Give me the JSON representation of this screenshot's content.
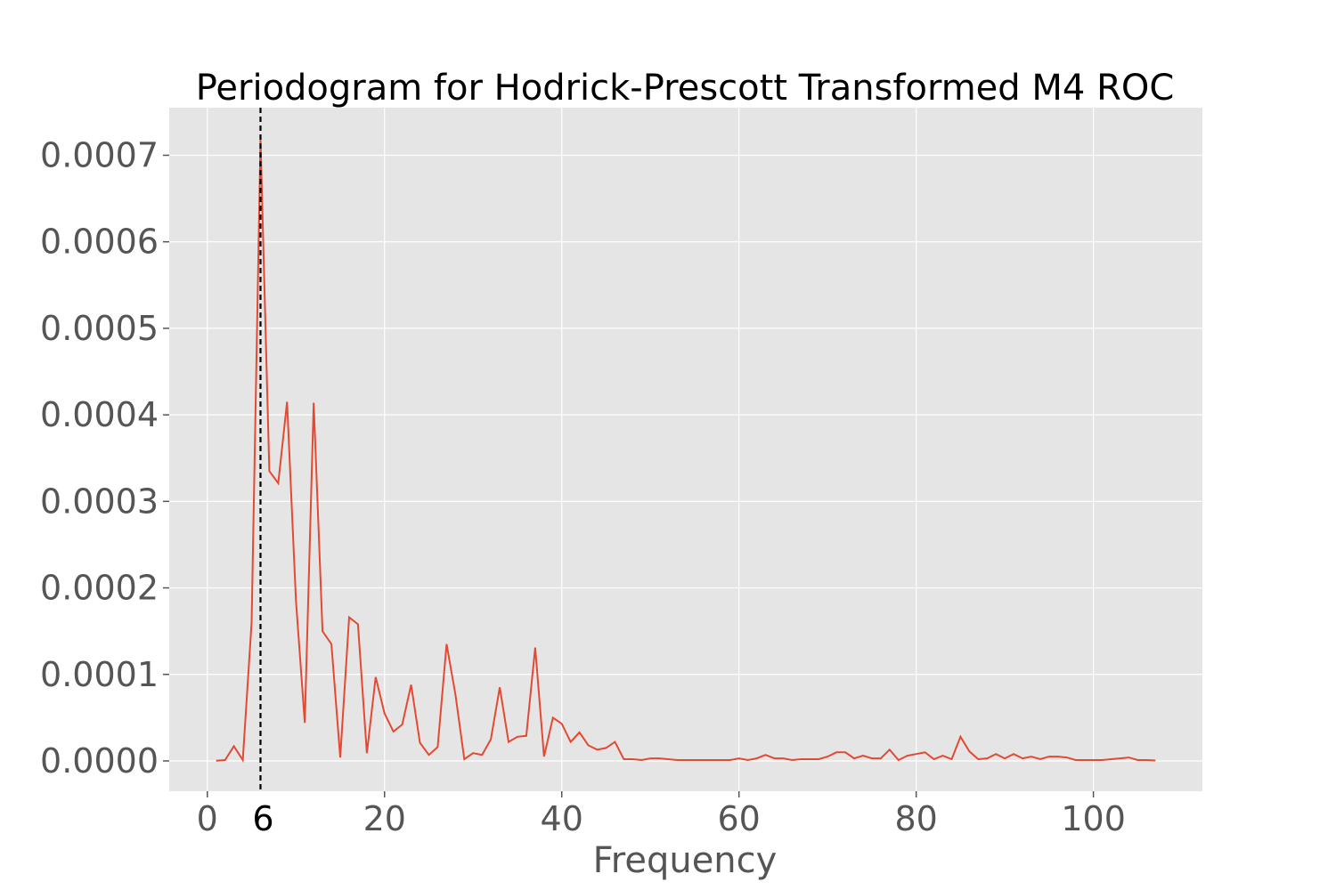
{
  "chart_data": {
    "type": "line",
    "title": "Periodogram for Hodrick-Prescott Transformed M4 ROC",
    "xlabel": "Frequency",
    "ylabel": "",
    "xlim": [
      -4.3,
      112.3
    ],
    "ylim": [
      -3.5e-05,
      0.000755
    ],
    "grid": true,
    "background": "#e5e5e5",
    "line_color": "#e24a33",
    "marker_line_color": "#000000",
    "x_ticks": [
      0,
      20,
      40,
      60,
      80,
      100
    ],
    "x_tick_labels": [
      "0",
      "20",
      "40",
      "60",
      "80",
      "100"
    ],
    "y_ticks": [
      0.0,
      0.0001,
      0.0002,
      0.0003,
      0.0004,
      0.0005,
      0.0006,
      0.0007
    ],
    "y_tick_labels": [
      "0.0000",
      "0.0001",
      "0.0002",
      "0.0003",
      "0.0004",
      "0.0005",
      "0.0006",
      "0.0007"
    ],
    "peak_marker": {
      "x": 6,
      "label": "6",
      "style": "dashed"
    },
    "series": [
      {
        "x": [
          1,
          2,
          3,
          4,
          5,
          6,
          7,
          8,
          9,
          10,
          11,
          12,
          13,
          14,
          15,
          16,
          17,
          18,
          19,
          20,
          21,
          22,
          23,
          24,
          25,
          26,
          27,
          28,
          29,
          30,
          31,
          32,
          33,
          34,
          35,
          36,
          37,
          38,
          39,
          40,
          41,
          42,
          43,
          44,
          45,
          46,
          47,
          48,
          49,
          50,
          51,
          52,
          53,
          54,
          55,
          56,
          57,
          58,
          59,
          60,
          61,
          62,
          63,
          64,
          65,
          66,
          67,
          68,
          69,
          70,
          71,
          72,
          73,
          74,
          75,
          76,
          77,
          78,
          79,
          80,
          81,
          82,
          83,
          84,
          85,
          86,
          87,
          88,
          89,
          90,
          91,
          92,
          93,
          94,
          95,
          96,
          97,
          98,
          99,
          100,
          101,
          102,
          103,
          104,
          105,
          106,
          107
        ],
        "values": [
          2e-07,
          1e-06,
          1.7e-05,
          1e-06,
          0.00016,
          0.000718,
          0.000335,
          0.000321,
          0.000415,
          0.000185,
          4.4e-05,
          0.000414,
          0.00015,
          0.000135,
          4e-06,
          0.000166,
          0.000158,
          9e-06,
          9.7e-05,
          5.5e-05,
          3.4e-05,
          4.2e-05,
          8.8e-05,
          2.1e-05,
          7e-06,
          1.6e-05,
          0.000135,
          7.7e-05,
          2e-06,
          9e-06,
          7e-06,
          2.5e-05,
          8.5e-05,
          2.2e-05,
          2.8e-05,
          2.9e-05,
          0.000131,
          5e-06,
          5e-05,
          4.3e-05,
          2.2e-05,
          3.3e-05,
          1.8e-05,
          1.3e-05,
          1.5e-05,
          2.2e-05,
          2e-06,
          2e-06,
          1e-06,
          3e-06,
          3e-06,
          2e-06,
          1e-06,
          1e-06,
          1e-06,
          1e-06,
          1e-06,
          1e-06,
          1e-06,
          3e-06,
          1e-06,
          3e-06,
          7e-06,
          3e-06,
          3e-06,
          1e-06,
          2e-06,
          2e-06,
          2e-06,
          5e-06,
          1e-05,
          1e-05,
          3e-06,
          6e-06,
          3e-06,
          3e-06,
          1.3e-05,
          1e-06,
          6e-06,
          8e-06,
          1e-05,
          2e-06,
          6e-06,
          2e-06,
          2.8e-05,
          1.1e-05,
          2e-06,
          3e-06,
          8e-06,
          3e-06,
          8e-06,
          3e-06,
          5e-06,
          2e-06,
          5e-06,
          5e-06,
          4e-06,
          1e-06,
          1e-06,
          1e-06,
          1e-06,
          2e-06,
          3e-06,
          4e-06,
          1e-06,
          1e-06,
          5e-07
        ]
      }
    ]
  }
}
